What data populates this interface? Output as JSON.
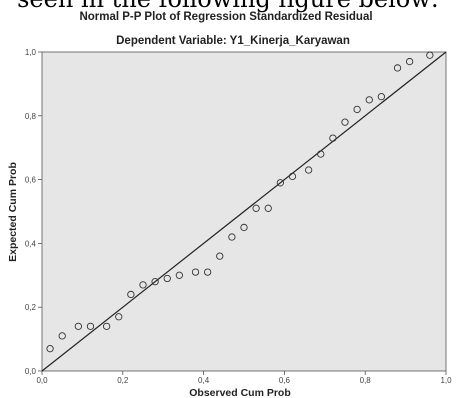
{
  "header_text": "seen in the following figure below:",
  "chart_data": {
    "type": "scatter",
    "title": "Normal P-P Plot of Regression Standardized Residual",
    "subtitle": "Dependent Variable: Y1_Kinerja_Karyawan",
    "xlabel": "Observed Cum Prob",
    "ylabel": "Expected Cum Prob",
    "xlim": [
      0.0,
      1.0
    ],
    "ylim": [
      0.0,
      1.0
    ],
    "x_ticks": [
      "0,0",
      "0,2",
      "0,4",
      "0,6",
      "0,8",
      "1,0"
    ],
    "y_ticks": [
      "0,0",
      "0,2",
      "0,4",
      "0,6",
      "0,8",
      "1,0"
    ],
    "reference_line": {
      "from": [
        0.0,
        0.0
      ],
      "to": [
        1.0,
        1.0
      ]
    },
    "grid": false,
    "colors": {
      "plot_background": "#e6e6e6",
      "marker_stroke": "#333333",
      "line": "#222222"
    },
    "points": [
      {
        "x": 0.02,
        "y": 0.07
      },
      {
        "x": 0.05,
        "y": 0.11
      },
      {
        "x": 0.09,
        "y": 0.14
      },
      {
        "x": 0.12,
        "y": 0.14
      },
      {
        "x": 0.16,
        "y": 0.14
      },
      {
        "x": 0.19,
        "y": 0.17
      },
      {
        "x": 0.22,
        "y": 0.24
      },
      {
        "x": 0.25,
        "y": 0.27
      },
      {
        "x": 0.28,
        "y": 0.28
      },
      {
        "x": 0.31,
        "y": 0.29
      },
      {
        "x": 0.34,
        "y": 0.3
      },
      {
        "x": 0.38,
        "y": 0.31
      },
      {
        "x": 0.41,
        "y": 0.31
      },
      {
        "x": 0.44,
        "y": 0.36
      },
      {
        "x": 0.47,
        "y": 0.42
      },
      {
        "x": 0.5,
        "y": 0.45
      },
      {
        "x": 0.53,
        "y": 0.51
      },
      {
        "x": 0.56,
        "y": 0.51
      },
      {
        "x": 0.59,
        "y": 0.59
      },
      {
        "x": 0.62,
        "y": 0.61
      },
      {
        "x": 0.66,
        "y": 0.63
      },
      {
        "x": 0.69,
        "y": 0.68
      },
      {
        "x": 0.72,
        "y": 0.73
      },
      {
        "x": 0.75,
        "y": 0.78
      },
      {
        "x": 0.78,
        "y": 0.82
      },
      {
        "x": 0.81,
        "y": 0.85
      },
      {
        "x": 0.84,
        "y": 0.86
      },
      {
        "x": 0.88,
        "y": 0.95
      },
      {
        "x": 0.91,
        "y": 0.97
      },
      {
        "x": 0.96,
        "y": 0.99
      }
    ]
  }
}
